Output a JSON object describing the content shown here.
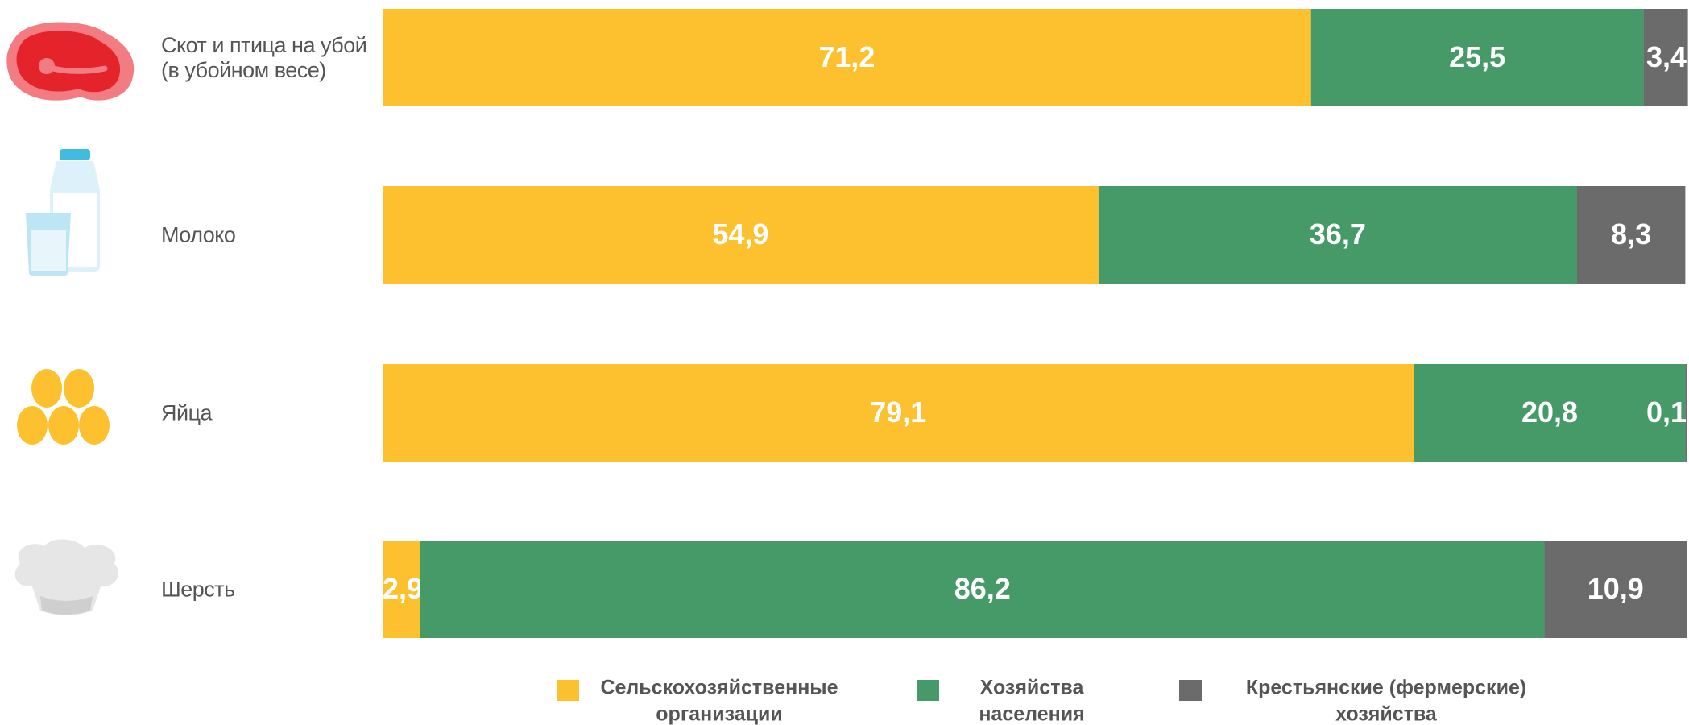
{
  "chart_data": {
    "type": "stacked_bar_horizontal",
    "categories": [
      "Скот и птица на убой\n(в убойном весе)",
      "Молоко",
      "Яйца",
      "Шерсть"
    ],
    "series": [
      {
        "name": "Сельскохозяйственные\nорганизации",
        "color": "#FDC12F",
        "values": [
          71.2,
          54.9,
          79.1,
          2.9
        ],
        "value_labels": [
          "71,2",
          "54,9",
          "79,1",
          "2,9"
        ]
      },
      {
        "name": "Хозяйства\nнаселения",
        "color": "#459A67",
        "values": [
          25.5,
          36.7,
          20.8,
          86.2
        ],
        "value_labels": [
          "25,5",
          "36,7",
          "20,8",
          "86,2"
        ]
      },
      {
        "name": "Крестьянские (фермерские)\nхозяйства",
        "color": "#6B6B6B",
        "values": [
          3.4,
          8.3,
          0.1,
          10.9
        ],
        "value_labels": [
          "3,4",
          "8,3",
          "0,1",
          "10,9"
        ]
      }
    ],
    "xlim": [
      0,
      100
    ],
    "legend": "bottom"
  }
}
